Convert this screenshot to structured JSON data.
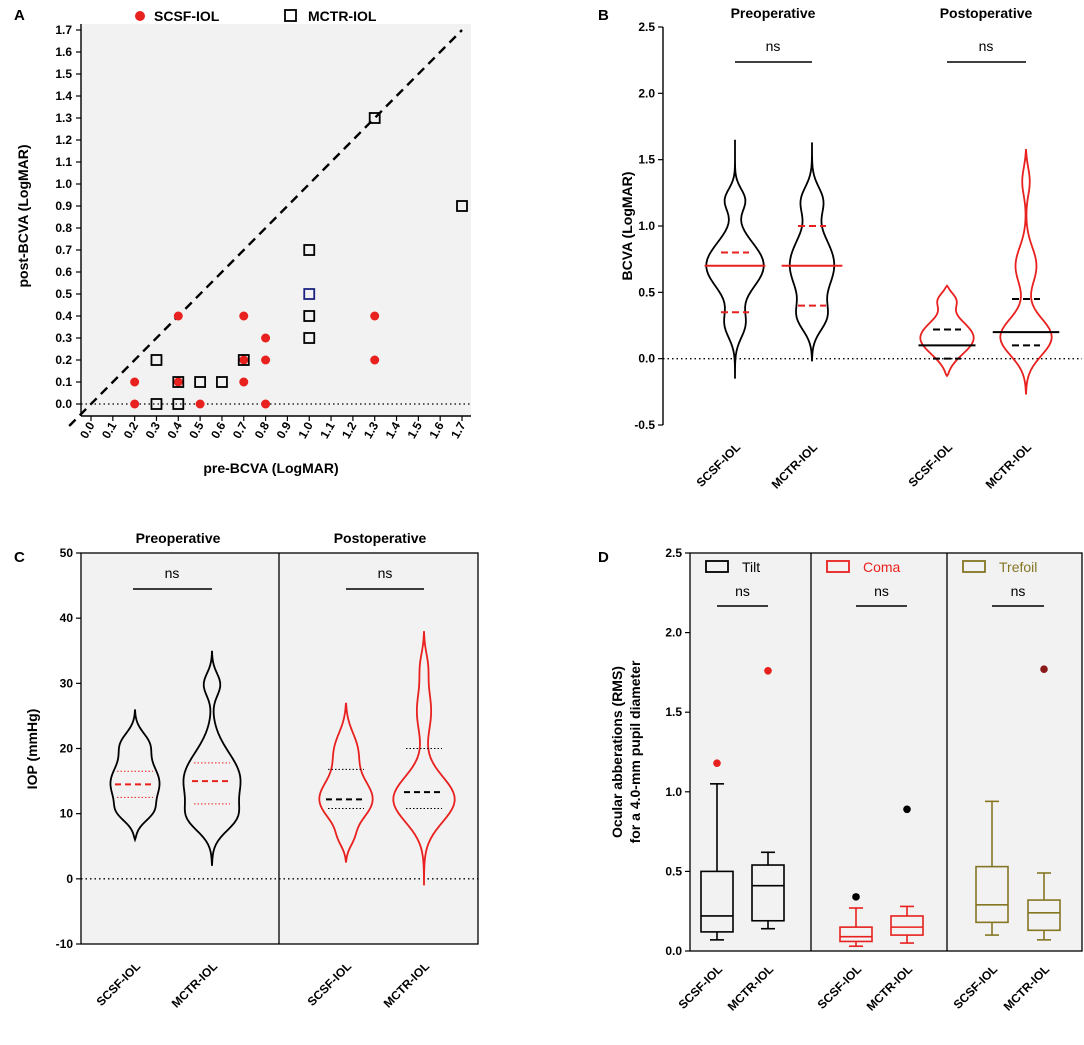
{
  "chart_data": [
    {
      "panel": "A",
      "type": "scatter",
      "xlabel": "pre-BCVA (LogMAR)",
      "ylabel": "post-BCVA (LogMAR)",
      "xlim": [
        0.0,
        1.7
      ],
      "ylim": [
        0.0,
        1.7
      ],
      "xticks": [
        "0.0",
        "0.1",
        "0.2",
        "0.3",
        "0.4",
        "0.5",
        "0.6",
        "0.7",
        "0.8",
        "0.9",
        "1.0",
        "1.1",
        "1.2",
        "1.3",
        "1.4",
        "1.5",
        "1.6",
        "1.7"
      ],
      "yticks": [
        "0.0",
        "0.1",
        "0.2",
        "0.3",
        "0.4",
        "0.5",
        "0.6",
        "0.7",
        "0.8",
        "0.9",
        "1.0",
        "1.1",
        "1.2",
        "1.3",
        "1.4",
        "1.5",
        "1.6",
        "1.7"
      ],
      "legend": [
        "SCSF-IOL",
        "MCTR-IOL"
      ],
      "series": [
        {
          "name": "SCSF-IOL",
          "points": [
            [
              0.2,
              0.1
            ],
            [
              0.2,
              0.0
            ],
            [
              0.4,
              0.4
            ],
            [
              0.4,
              0.1
            ],
            [
              0.5,
              0.0
            ],
            [
              0.7,
              0.4
            ],
            [
              0.7,
              0.2
            ],
            [
              0.7,
              0.1
            ],
            [
              0.8,
              0.3
            ],
            [
              0.8,
              0.2
            ],
            [
              0.8,
              0.0
            ],
            [
              1.3,
              0.4
            ],
            [
              1.3,
              0.2
            ]
          ]
        },
        {
          "name": "MCTR-IOL",
          "points": [
            [
              0.3,
              0.2
            ],
            [
              0.3,
              0.0
            ],
            [
              0.4,
              0.1
            ],
            [
              0.4,
              0.0
            ],
            [
              0.5,
              0.1
            ],
            [
              0.6,
              0.1
            ],
            [
              0.7,
              0.2
            ],
            [
              1.0,
              0.7
            ],
            [
              1.0,
              0.5
            ],
            [
              1.0,
              0.4
            ],
            [
              1.0,
              0.3
            ],
            [
              1.3,
              1.3
            ],
            [
              1.7,
              0.9
            ]
          ]
        }
      ],
      "reference_line": "y = x"
    },
    {
      "panel": "B",
      "type": "violin",
      "ylabel": "BCVA (LogMAR)",
      "ylim": [
        -0.5,
        2.5
      ],
      "yticks": [
        "-0.5",
        "0.0",
        "0.5",
        "1.0",
        "1.5",
        "2.0",
        "2.5"
      ],
      "groups": [
        "Preoperative",
        "Postoperative"
      ],
      "categories": [
        "SCSF-IOL",
        "MCTR-IOL",
        "SCSF-IOL",
        "MCTR-IOL"
      ],
      "violins": [
        {
          "group": "Preoperative",
          "name": "SCSF-IOL",
          "color": "#000000",
          "median": 0.7,
          "q1": 0.35,
          "q3": 0.8,
          "min": -0.15,
          "max": 1.65
        },
        {
          "group": "Preoperative",
          "name": "MCTR-IOL",
          "color": "#000000",
          "median": 0.7,
          "q1": 0.4,
          "q3": 1.0,
          "min": -0.02,
          "max": 1.63
        },
        {
          "group": "Postoperative",
          "name": "SCSF-IOL",
          "color": "#e8201e",
          "median": 0.1,
          "q1": 0.0,
          "q3": 0.22,
          "min": -0.13,
          "max": 0.55
        },
        {
          "group": "Postoperative",
          "name": "MCTR-IOL",
          "color": "#e8201e",
          "median": 0.2,
          "q1": 0.1,
          "q3": 0.45,
          "min": -0.27,
          "max": 1.58
        }
      ],
      "annotations": [
        "ns",
        "ns"
      ]
    },
    {
      "panel": "C",
      "type": "violin",
      "ylabel": "IOP (mmHg)",
      "ylim": [
        -10,
        50
      ],
      "yticks": [
        "-10",
        "0",
        "10",
        "20",
        "30",
        "40",
        "50"
      ],
      "groups": [
        "Preoperative",
        "Postoperative"
      ],
      "categories": [
        "SCSF-IOL",
        "MCTR-IOL",
        "SCSF-IOL",
        "MCTR-IOL"
      ],
      "violins": [
        {
          "group": "Preoperative",
          "name": "SCSF-IOL",
          "color": "#000000",
          "median": 14.5,
          "q1": 12.5,
          "q3": 16.5,
          "min": 6,
          "max": 26
        },
        {
          "group": "Preoperative",
          "name": "MCTR-IOL",
          "color": "#000000",
          "median": 15,
          "q1": 11.5,
          "q3": 17.8,
          "min": 2,
          "max": 35
        },
        {
          "group": "Postoperative",
          "name": "SCSF-IOL",
          "color": "#e8201e",
          "median": 12.2,
          "q1": 10.8,
          "q3": 16.8,
          "min": 2.5,
          "max": 27
        },
        {
          "group": "Postoperative",
          "name": "MCTR-IOL",
          "color": "#e8201e",
          "median": 13.3,
          "q1": 10.8,
          "q3": 20,
          "min": -1,
          "max": 38
        }
      ],
      "annotations": [
        "ns",
        "ns"
      ]
    },
    {
      "panel": "D",
      "type": "box",
      "ylabel": "Ocular abberations (RMS)\nfor a 4.0-mm pupil diameter",
      "ylim": [
        0.0,
        2.5
      ],
      "yticks": [
        "0.0",
        "0.5",
        "1.0",
        "1.5",
        "2.0",
        "2.5"
      ],
      "groups": [
        "Tilt",
        "Coma",
        "Trefoil"
      ],
      "categories": [
        "SCSF-IOL",
        "MCTR-IOL",
        "SCSF-IOL",
        "MCTR-IOL",
        "SCSF-IOL",
        "MCTR-IOL"
      ],
      "boxes": [
        {
          "group": "Tilt",
          "name": "SCSF-IOL",
          "color": "#000000",
          "min": 0.07,
          "q1": 0.12,
          "median": 0.22,
          "q3": 0.5,
          "max": 1.05,
          "outliers": [
            1.18
          ],
          "outlier_color": "#e8201e"
        },
        {
          "group": "Tilt",
          "name": "MCTR-IOL",
          "color": "#000000",
          "min": 0.14,
          "q1": 0.19,
          "median": 0.41,
          "q3": 0.54,
          "max": 0.62,
          "outliers": [
            1.76
          ],
          "outlier_color": "#e8201e"
        },
        {
          "group": "Coma",
          "name": "SCSF-IOL",
          "color": "#e8201e",
          "min": 0.03,
          "q1": 0.06,
          "median": 0.09,
          "q3": 0.15,
          "max": 0.27,
          "outliers": [
            0.34
          ],
          "outlier_color": "#000000"
        },
        {
          "group": "Coma",
          "name": "MCTR-IOL",
          "color": "#e8201e",
          "min": 0.05,
          "q1": 0.1,
          "median": 0.15,
          "q3": 0.22,
          "max": 0.28,
          "outliers": [
            0.89
          ],
          "outlier_color": "#000000"
        },
        {
          "group": "Trefoil",
          "name": "SCSF-IOL",
          "color": "#857624",
          "min": 0.1,
          "q1": 0.18,
          "median": 0.29,
          "q3": 0.53,
          "max": 0.94,
          "outliers": [],
          "outlier_color": "#857624"
        },
        {
          "group": "Trefoil",
          "name": "MCTR-IOL",
          "color": "#857624",
          "min": 0.07,
          "q1": 0.13,
          "median": 0.24,
          "q3": 0.32,
          "max": 0.49,
          "outliers": [
            1.77
          ],
          "outlier_color": "#8a1a1a"
        }
      ],
      "annotations": [
        "ns",
        "ns",
        "ns"
      ]
    }
  ],
  "labels": {
    "panelA": "A",
    "panelB": "B",
    "panelC": "C",
    "panelD": "D",
    "legendA": [
      "SCSF-IOL",
      "MCTR-IOL"
    ],
    "legendD": [
      "Tilt",
      "Coma",
      "Trefoil"
    ],
    "titles": [
      "Preoperative",
      "Postoperative"
    ],
    "ns": "ns"
  }
}
